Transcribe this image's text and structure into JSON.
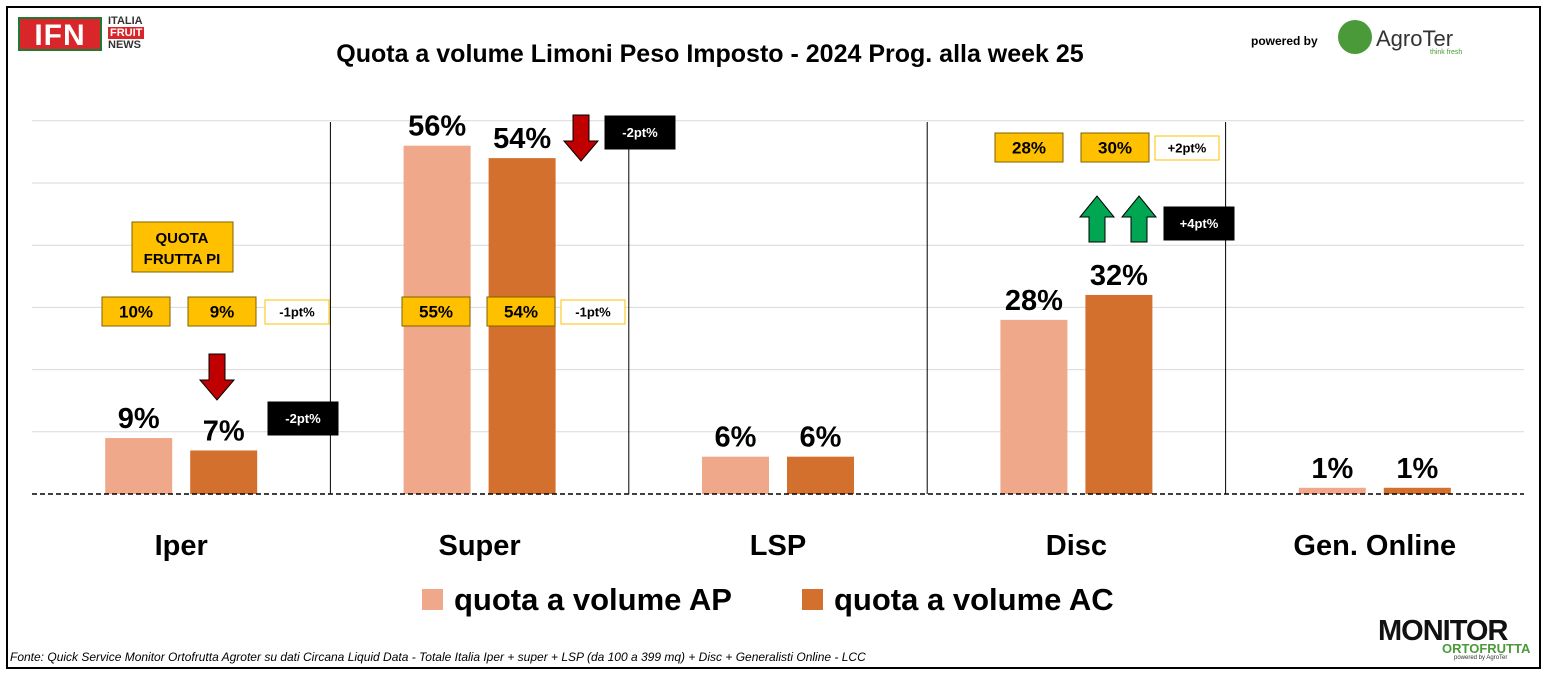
{
  "header": {
    "ifn_logo": "IFN",
    "ifn_words": [
      "ITALIA",
      "FRUIT",
      "NEWS"
    ],
    "powered_by": "powered by",
    "agroter": "AgroTer",
    "agroter_tag": "think fresh"
  },
  "footer": {
    "source": "Fonte: Quick Service Monitor Ortofrutta Agroter su dati Circana Liquid Data - Totale Italia Iper + super + LSP (da 100 a 399 mq) + Disc + Generalisti Online - LCC",
    "monitor_1": "MONITOR",
    "monitor_2": "ORTOFRUTTA",
    "monitor_3": "powered by AgroTer"
  },
  "colors": {
    "ap": "#f0a88a",
    "ac": "#d4702e",
    "box": "#ffc000",
    "down_arrow": "#c00000",
    "up_arrow": "#00a651"
  },
  "chart_data": {
    "type": "bar",
    "title": "Quota a volume Limoni Peso Imposto - 2024 Prog. alla week 25",
    "categories": [
      "Iper",
      "Super",
      "LSP",
      "Disc",
      "Gen. Online"
    ],
    "series": [
      {
        "name": "quota a volume AP",
        "values": [
          9,
          56,
          6,
          28,
          1
        ],
        "labels": [
          "9%",
          "56%",
          "6%",
          "28%",
          "1%"
        ]
      },
      {
        "name": "quota a volume AC",
        "values": [
          7,
          54,
          6,
          32,
          1
        ],
        "labels": [
          "7%",
          "54%",
          "6%",
          "32%",
          "1%"
        ]
      }
    ],
    "ylim": [
      0,
      60
    ],
    "grid": true,
    "legend": "bottom",
    "annotations": {
      "quota_label": [
        "QUOTA",
        "FRUTTA PI"
      ],
      "pi_boxes": [
        {
          "category": "Iper",
          "ap": "10%",
          "ac": "9%",
          "delta": "-1pt%"
        },
        {
          "category": "Super",
          "ap": "55%",
          "ac": "54%",
          "delta": "-1pt%"
        },
        {
          "category": "Disc",
          "ap": "28%",
          "ac": "30%",
          "delta": "+2pt%"
        }
      ],
      "changes": [
        {
          "category": "Iper",
          "label": "-2pt%",
          "direction": "down"
        },
        {
          "category": "Super",
          "label": "-2pt%",
          "direction": "down"
        },
        {
          "category": "Disc",
          "label": "+4pt%",
          "direction": "up"
        }
      ]
    }
  }
}
